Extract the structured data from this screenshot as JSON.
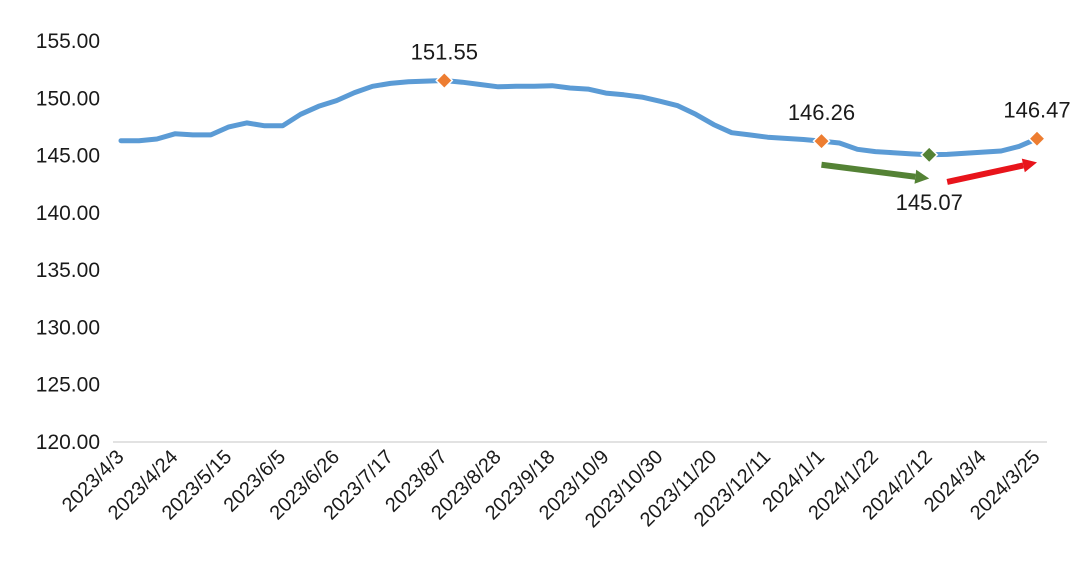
{
  "chart_data": {
    "type": "line",
    "title": "",
    "xlabel": "",
    "ylabel": "",
    "ylim": [
      120,
      155
    ],
    "yticks": [
      "120.00",
      "125.00",
      "130.00",
      "135.00",
      "140.00",
      "145.00",
      "150.00",
      "155.00"
    ],
    "grid": false,
    "legend": "none",
    "x_tick_labels": [
      "2023/4/3",
      "2023/4/24",
      "2023/5/15",
      "2023/6/5",
      "2023/6/26",
      "2023/7/17",
      "2023/8/7",
      "2023/8/28",
      "2023/9/18",
      "2023/10/9",
      "2023/10/30",
      "2023/11/20",
      "2023/12/11",
      "2024/1/1",
      "2024/1/22",
      "2024/2/12",
      "2024/3/4",
      "2024/3/25"
    ],
    "series": [
      {
        "color": "#5b9bd5",
        "x": [
          "2023/4/3",
          "2023/4/10",
          "2023/4/17",
          "2023/4/24",
          "2023/5/1",
          "2023/5/8",
          "2023/5/15",
          "2023/5/22",
          "2023/5/29",
          "2023/6/5",
          "2023/6/12",
          "2023/6/19",
          "2023/6/26",
          "2023/7/3",
          "2023/7/10",
          "2023/7/17",
          "2023/7/24",
          "2023/7/31",
          "2023/8/7",
          "2023/8/14",
          "2023/8/21",
          "2023/8/28",
          "2023/9/4",
          "2023/9/11",
          "2023/9/18",
          "2023/9/25",
          "2023/10/2",
          "2023/10/9",
          "2023/10/16",
          "2023/10/23",
          "2023/10/30",
          "2023/11/6",
          "2023/11/13",
          "2023/11/20",
          "2023/11/27",
          "2023/12/4",
          "2023/12/11",
          "2023/12/18",
          "2023/12/25",
          "2024/1/1",
          "2024/1/8",
          "2024/1/15",
          "2024/1/22",
          "2024/1/29",
          "2024/2/5",
          "2024/2/12",
          "2024/2/19",
          "2024/2/26",
          "2024/3/4",
          "2024/3/11",
          "2024/3/18",
          "2024/3/25"
        ],
        "values": [
          146.3,
          146.3,
          146.45,
          146.9,
          146.8,
          146.8,
          147.5,
          147.85,
          147.6,
          147.6,
          148.6,
          149.3,
          149.8,
          150.5,
          151.05,
          151.3,
          151.45,
          151.5,
          151.55,
          151.4,
          151.2,
          151.0,
          151.05,
          151.05,
          151.1,
          150.9,
          150.8,
          150.45,
          150.3,
          150.1,
          149.75,
          149.35,
          148.6,
          147.7,
          147.0,
          146.8,
          146.6,
          146.5,
          146.4,
          146.26,
          146.1,
          145.55,
          145.35,
          145.25,
          145.15,
          145.07,
          145.1,
          145.2,
          145.3,
          145.4,
          145.8,
          146.47
        ]
      }
    ],
    "markers": [
      {
        "x": "2023/8/7",
        "value": 151.55,
        "label": "151.55",
        "color": "#ed7d31",
        "label_position": "above"
      },
      {
        "x": "2024/1/1",
        "value": 146.26,
        "label": "146.26",
        "color": "#ed7d31",
        "label_position": "above"
      },
      {
        "x": "2024/2/12",
        "value": 145.07,
        "label": "145.07",
        "color": "#548235",
        "label_position": "below"
      },
      {
        "x": "2024/3/25",
        "value": 146.47,
        "label": "146.47",
        "color": "#ed7d31",
        "label_position": "above"
      }
    ],
    "annotations": [
      {
        "type": "arrow",
        "direction": "down",
        "color": "#548235",
        "from": {
          "x": "2024/1/1",
          "value": 144.2
        },
        "to": {
          "x": "2024/2/12",
          "value": 143.0
        }
      },
      {
        "type": "arrow",
        "direction": "up",
        "color": "#e8141b",
        "from": {
          "x": "2024/2/19",
          "value": 142.7
        },
        "to": {
          "x": "2024/3/25",
          "value": 144.4
        }
      }
    ]
  }
}
